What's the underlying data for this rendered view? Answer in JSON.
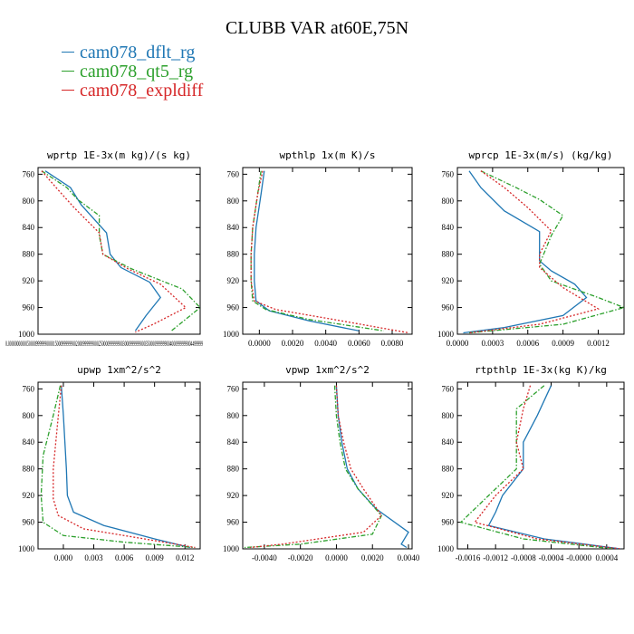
{
  "figure": {
    "title": "CLUBB VAR at60E,75N",
    "legend": [
      {
        "name": "cam078_dflt_rg",
        "color": "#1f77b4",
        "style": "solid"
      },
      {
        "name": "cam078_qt5_rg",
        "color": "#2ca02c",
        "style": "dashdot"
      },
      {
        "name": "cam078_expldiff",
        "color": "#d62728",
        "style": "dotted"
      }
    ]
  },
  "chart_data": [
    {
      "type": "line",
      "title": "wprtp  1E-3x(m kg)/(s kg)",
      "xlim": [
        0,
        0.0045
      ],
      "ylim": [
        1000,
        750
      ],
      "yticks": [
        760,
        800,
        840,
        880,
        920,
        960,
        1000
      ],
      "xticks": [],
      "xtick_text": "0.0000000000050000999999000015000999999002000999999000250000999999003000999999000350000999999004000999999004499999",
      "series": [
        {
          "name": "cam078_dflt_rg",
          "points": [
            [
              0.0002,
              755
            ],
            [
              0.0009,
              780
            ],
            [
              0.0012,
              806
            ],
            [
              0.0019,
              848
            ],
            [
              0.002,
              880
            ],
            [
              0.0023,
              900
            ],
            [
              0.0031,
              922
            ],
            [
              0.0034,
              945
            ],
            [
              0.003,
              972
            ],
            [
              0.0027,
              995
            ]
          ]
        },
        {
          "name": "cam078_qt5_rg",
          "points": [
            [
              0.0001,
              755
            ],
            [
              0.0008,
              780
            ],
            [
              0.0011,
              798
            ],
            [
              0.0017,
              822
            ],
            [
              0.0017,
              852
            ],
            [
              0.0018,
              880
            ],
            [
              0.0026,
              902
            ],
            [
              0.004,
              932
            ],
            [
              0.0045,
              960
            ],
            [
              0.0037,
              995
            ]
          ]
        },
        {
          "name": "cam078_expldiff",
          "points": [
            [
              0.0001,
              755
            ],
            [
              0.0005,
              780
            ],
            [
              0.001,
              810
            ],
            [
              0.0017,
              848
            ],
            [
              0.0018,
              880
            ],
            [
              0.0025,
              902
            ],
            [
              0.0034,
              925
            ],
            [
              0.0041,
              960
            ],
            [
              0.0032,
              985
            ],
            [
              0.0027,
              997
            ]
          ]
        }
      ]
    },
    {
      "type": "line",
      "title": "wpthlp  1x(m K)/s",
      "xlim": [
        -0.001,
        0.0092
      ],
      "ylim": [
        1000,
        750
      ],
      "yticks": [
        760,
        800,
        840,
        880,
        920,
        960,
        1000
      ],
      "xticks": [
        0.0,
        0.002,
        0.004,
        0.006,
        0.008
      ],
      "xtick_labels": [
        "0.0000",
        "0.0020",
        "0.0040",
        "0.0060",
        "0.0080"
      ],
      "series": [
        {
          "name": "cam078_dflt_rg",
          "points": [
            [
              0.0003,
              755
            ],
            [
              0.0001,
              790
            ],
            [
              -0.0002,
              840
            ],
            [
              -0.0003,
              880
            ],
            [
              -0.0003,
              920
            ],
            [
              -0.0002,
              950
            ],
            [
              0.0006,
              965
            ],
            [
              0.003,
              980
            ],
            [
              0.006,
              995
            ]
          ]
        },
        {
          "name": "cam078_qt5_rg",
          "points": [
            [
              0.0001,
              755
            ],
            [
              -0.0001,
              790
            ],
            [
              -0.0004,
              840
            ],
            [
              -0.0005,
              880
            ],
            [
              -0.0005,
              920
            ],
            [
              -0.0004,
              950
            ],
            [
              0.0004,
              963
            ],
            [
              0.003,
              978
            ],
            [
              0.0075,
              995
            ]
          ]
        },
        {
          "name": "cam078_expldiff",
          "points": [
            [
              0.0002,
              755
            ],
            [
              -0.0001,
              790
            ],
            [
              -0.0004,
              840
            ],
            [
              -0.0005,
              880
            ],
            [
              -0.0005,
              920
            ],
            [
              -0.0003,
              950
            ],
            [
              0.001,
              963
            ],
            [
              0.0045,
              978
            ],
            [
              0.009,
              998
            ]
          ]
        }
      ]
    },
    {
      "type": "line",
      "title": "wprcp  1E-3x(m/s) (kg/kg)",
      "xlim": [
        0,
        0.00142
      ],
      "ylim": [
        1000,
        750
      ],
      "yticks": [
        760,
        800,
        840,
        880,
        920,
        960,
        1000
      ],
      "xticks": [
        0.0,
        0.0003,
        0.0006,
        0.0009,
        0.0012
      ],
      "xtick_labels": [
        "0.0000",
        "0.0003",
        "0.0006",
        "0.0009",
        "0.0012"
      ],
      "series": [
        {
          "name": "cam078_dflt_rg",
          "points": [
            [
              0.0001,
              755
            ],
            [
              0.0002,
              780
            ],
            [
              0.0004,
              815
            ],
            [
              0.0007,
              846
            ],
            [
              0.0007,
              890
            ],
            [
              0.0008,
              905
            ],
            [
              0.001,
              925
            ],
            [
              0.0011,
              945
            ],
            [
              0.0009,
              972
            ],
            [
              0.0004,
              990
            ],
            [
              5e-05,
              998
            ]
          ]
        },
        {
          "name": "cam078_qt5_rg",
          "points": [
            [
              0.0002,
              755
            ],
            [
              0.0005,
              780
            ],
            [
              0.0007,
              798
            ],
            [
              0.0009,
              822
            ],
            [
              0.0008,
              852
            ],
            [
              0.0007,
              895
            ],
            [
              0.0008,
              920
            ],
            [
              0.0012,
              945
            ],
            [
              0.00142,
              960
            ],
            [
              0.0009,
              985
            ],
            [
              0.0001,
              998
            ]
          ]
        },
        {
          "name": "cam078_expldiff",
          "points": [
            [
              0.0002,
              755
            ],
            [
              0.0004,
              780
            ],
            [
              0.0006,
              810
            ],
            [
              0.0008,
              845
            ],
            [
              0.0007,
              880
            ],
            [
              0.0007,
              900
            ],
            [
              0.0009,
              930
            ],
            [
              0.0012,
              962
            ],
            [
              0.0007,
              985
            ],
            [
              0.0001,
              998
            ]
          ]
        }
      ]
    },
    {
      "type": "line",
      "title": "upwp  1xm^2/s^2",
      "xlim": [
        -0.0025,
        0.0135
      ],
      "ylim": [
        1000,
        750
      ],
      "yticks": [
        760,
        800,
        840,
        880,
        920,
        960,
        1000
      ],
      "xticks": [
        0.0,
        0.003,
        0.006,
        0.009,
        0.012
      ],
      "xtick_labels": [
        "0.000",
        "0.003",
        "0.006",
        "0.009",
        "0.012"
      ],
      "series": [
        {
          "name": "cam078_dflt_rg",
          "points": [
            [
              -0.0002,
              755
            ],
            [
              0.0,
              800
            ],
            [
              0.0003,
              880
            ],
            [
              0.0004,
              920
            ],
            [
              0.001,
              945
            ],
            [
              0.004,
              965
            ],
            [
              0.009,
              985
            ],
            [
              0.0125,
              998
            ]
          ]
        },
        {
          "name": "cam078_qt5_rg",
          "points": [
            [
              -0.0003,
              755
            ],
            [
              -0.001,
              800
            ],
            [
              -0.002,
              860
            ],
            [
              -0.0022,
              920
            ],
            [
              -0.002,
              960
            ],
            [
              0.0,
              980
            ],
            [
              0.006,
              990
            ],
            [
              0.013,
              998
            ]
          ]
        },
        {
          "name": "cam078_expldiff",
          "points": [
            [
              -0.0002,
              755
            ],
            [
              -0.0005,
              800
            ],
            [
              -0.001,
              880
            ],
            [
              -0.001,
              925
            ],
            [
              -0.0005,
              950
            ],
            [
              0.002,
              970
            ],
            [
              0.008,
              985
            ],
            [
              0.013,
              998
            ]
          ]
        }
      ]
    },
    {
      "type": "line",
      "title": "vpwp  1xm^2/s^2",
      "xlim": [
        -0.0052,
        0.0042
      ],
      "ylim": [
        1000,
        750
      ],
      "yticks": [
        760,
        800,
        840,
        880,
        920,
        960,
        1000
      ],
      "xticks": [
        -0.004,
        -0.002,
        0.0,
        0.002,
        0.004
      ],
      "xtick_labels": [
        "-0.0040",
        "-0.0020",
        "0.0000",
        "0.0020",
        "0.0040"
      ],
      "series": [
        {
          "name": "cam078_dflt_rg",
          "points": [
            [
              0.0,
              755
            ],
            [
              0.0001,
              800
            ],
            [
              0.0003,
              840
            ],
            [
              0.0006,
              880
            ],
            [
              0.0012,
              910
            ],
            [
              0.0022,
              940
            ],
            [
              0.004,
              975
            ],
            [
              0.0036,
              993
            ],
            [
              0.0039,
              998
            ]
          ]
        },
        {
          "name": "cam078_qt5_rg",
          "points": [
            [
              -0.0001,
              755
            ],
            [
              0.0,
              800
            ],
            [
              0.0002,
              840
            ],
            [
              0.0005,
              880
            ],
            [
              0.0012,
              910
            ],
            [
              0.0025,
              950
            ],
            [
              0.002,
              978
            ],
            [
              -0.002,
              993
            ],
            [
              -0.0051,
              998
            ]
          ]
        },
        {
          "name": "cam078_expldiff",
          "points": [
            [
              0.0,
              755
            ],
            [
              0.0001,
              800
            ],
            [
              0.0004,
              840
            ],
            [
              0.0008,
              880
            ],
            [
              0.0015,
              910
            ],
            [
              0.0025,
              950
            ],
            [
              0.0015,
              975
            ],
            [
              -0.003,
              993
            ],
            [
              -0.0048,
              998
            ]
          ]
        }
      ]
    },
    {
      "type": "line",
      "title": "rtpthlp  1E-3x(kg K)/kg",
      "xlim": [
        -0.00175,
        0.00065
      ],
      "ylim": [
        1000,
        750
      ],
      "yticks": [
        760,
        800,
        840,
        880,
        920,
        960,
        1000
      ],
      "xticks": [
        -0.0016,
        -0.0012,
        -0.0008,
        -0.0004,
        0.0,
        0.0004
      ],
      "xtick_labels": [
        "-0.0016",
        "-0.0012",
        "-0.0008",
        "-0.0004",
        "-0.0000",
        "0.0004"
      ],
      "series": [
        {
          "name": "cam078_dflt_rg",
          "points": [
            [
              -0.0004,
              755
            ],
            [
              -0.0006,
              800
            ],
            [
              -0.0008,
              840
            ],
            [
              -0.0008,
              880
            ],
            [
              -0.0011,
              920
            ],
            [
              -0.0012,
              945
            ],
            [
              -0.0013,
              965
            ],
            [
              -0.0005,
              985
            ],
            [
              0.0006,
              1000
            ]
          ]
        },
        {
          "name": "cam078_qt5_rg",
          "points": [
            [
              -0.0005,
              755
            ],
            [
              -0.0009,
              790
            ],
            [
              -0.0009,
              815
            ],
            [
              -0.0009,
              860
            ],
            [
              -0.0009,
              880
            ],
            [
              -0.0013,
              920
            ],
            [
              -0.0017,
              960
            ],
            [
              -0.0008,
              985
            ],
            [
              0.0005,
              1000
            ]
          ]
        },
        {
          "name": "cam078_expldiff",
          "points": [
            [
              -0.0007,
              755
            ],
            [
              -0.0008,
              790
            ],
            [
              -0.0009,
              840
            ],
            [
              -0.0008,
              880
            ],
            [
              -0.0012,
              920
            ],
            [
              -0.0015,
              960
            ],
            [
              -0.0006,
              985
            ],
            [
              0.0006,
              1000
            ]
          ]
        }
      ]
    }
  ]
}
